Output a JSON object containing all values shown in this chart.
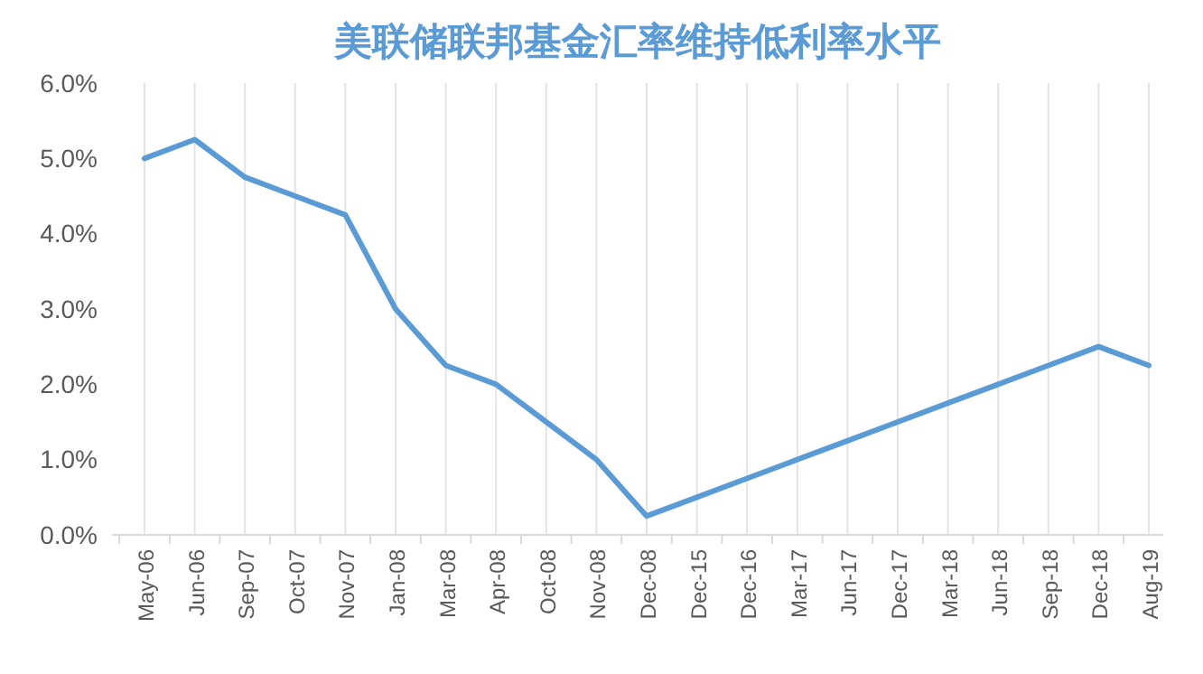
{
  "chart_data": {
    "type": "line",
    "title": "美联储联邦基金汇率维持低利率水平",
    "categories": [
      "May-06",
      "Jun-06",
      "Sep-07",
      "Oct-07",
      "Nov-07",
      "Jan-08",
      "Mar-08",
      "Apr-08",
      "Oct-08",
      "Nov-08",
      "Dec-08",
      "Dec-15",
      "Dec-16",
      "Mar-17",
      "Jun-17",
      "Dec-17",
      "Mar-18",
      "Jun-18",
      "Sep-18",
      "Dec-18",
      "Aug-19"
    ],
    "series": [
      {
        "color": "#5b9bd5",
        "values": [
          5.0,
          5.25,
          4.75,
          4.5,
          4.25,
          3.0,
          2.25,
          2.0,
          1.5,
          1.0,
          0.25,
          0.5,
          0.75,
          1.0,
          1.25,
          1.5,
          1.75,
          2.0,
          2.25,
          2.5,
          2.25
        ]
      }
    ],
    "ylim": [
      0,
      6
    ],
    "yticks": [
      {
        "value": 0,
        "label": "0.0%"
      },
      {
        "value": 1,
        "label": "1.0%"
      },
      {
        "value": 2,
        "label": "2.0%"
      },
      {
        "value": 3,
        "label": "3.0%"
      },
      {
        "value": 4,
        "label": "4.0%"
      },
      {
        "value": 5,
        "label": "5.0%"
      },
      {
        "value": 6,
        "label": "6.0%"
      }
    ],
    "grid": "x",
    "marker": "none",
    "line_style": "solid"
  }
}
